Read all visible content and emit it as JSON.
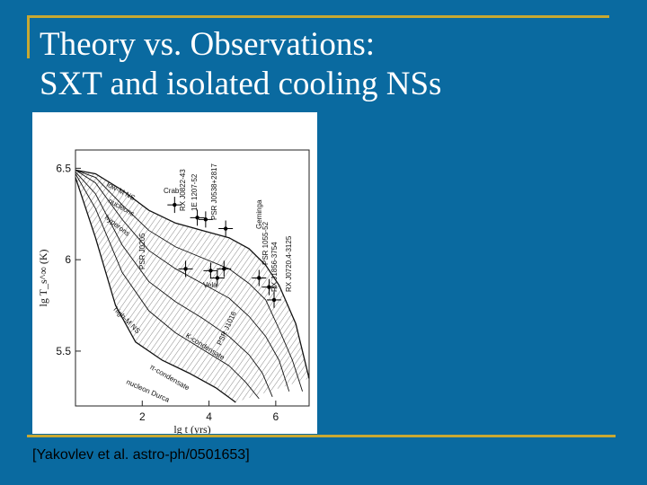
{
  "slide": {
    "title_line1": "Theory vs. Observations:",
    "title_line2": "SXT and isolated cooling NSs",
    "citation": "[Yakovlev et al. astro-ph/0501653]",
    "colors": {
      "background": "#0a6aa0",
      "frame": "#c8a832",
      "title": "#ffffff"
    }
  },
  "chart_data": {
    "type": "line",
    "xlabel": "lg t   (yrs)",
    "ylabel": "lg T_s^∞  (K)",
    "xlim": [
      0,
      7
    ],
    "ylim": [
      5.2,
      6.6
    ],
    "x_ticks": [
      "2",
      "4",
      "6"
    ],
    "y_ticks": [
      "6.5",
      "6",
      "5.5"
    ],
    "curve_labels": [
      "low-M NS",
      "nucleons",
      "hyperons",
      "high-M NS",
      "K-condensate",
      "π-condensate",
      "nucleon Durca"
    ],
    "source_labels": [
      "Crab",
      "RX J0822-43",
      "1E 1207-52",
      "PSR J0538+2817",
      "Vela",
      "PSR J0205",
      "PSR 1055-52",
      "Geminga",
      "RX J1856-3754",
      "RX J0720.4-3125",
      "PSR J1016"
    ],
    "series": [
      {
        "x": [
          0,
          0.6,
          1.4,
          2.2,
          3.0,
          3.8,
          4.6,
          5.2,
          5.7,
          6.1,
          6.6,
          7.0
        ],
        "y": [
          6.49,
          6.47,
          6.38,
          6.27,
          6.2,
          6.16,
          6.12,
          6.06,
          5.97,
          5.86,
          5.65,
          5.35
        ]
      },
      {
        "x": [
          0,
          0.6,
          1.4,
          2.2,
          3.0,
          3.8,
          4.6,
          5.2,
          5.7,
          6.1,
          6.5,
          6.8
        ],
        "y": [
          6.49,
          6.45,
          6.3,
          6.16,
          6.07,
          6.01,
          5.95,
          5.87,
          5.78,
          5.62,
          5.45,
          5.28
        ]
      },
      {
        "x": [
          0,
          0.6,
          1.4,
          2.2,
          3.0,
          3.8,
          4.6,
          5.2,
          5.7,
          6.1,
          6.4
        ],
        "y": [
          6.49,
          6.42,
          6.22,
          6.05,
          5.95,
          5.87,
          5.79,
          5.69,
          5.58,
          5.45,
          5.28
        ]
      },
      {
        "x": [
          0,
          0.6,
          1.4,
          2.2,
          3.0,
          3.8,
          4.6,
          5.2,
          5.6,
          5.9
        ],
        "y": [
          6.48,
          6.36,
          6.08,
          5.88,
          5.77,
          5.68,
          5.58,
          5.48,
          5.38,
          5.25
        ]
      },
      {
        "x": [
          0,
          0.6,
          1.4,
          2.2,
          3.0,
          3.8,
          4.6,
          5.1,
          5.5
        ],
        "y": [
          6.47,
          6.28,
          5.93,
          5.72,
          5.6,
          5.51,
          5.42,
          5.33,
          5.24
        ]
      },
      {
        "x": [
          0,
          0.6,
          1.2,
          1.8,
          2.6,
          3.4,
          4.2,
          4.8
        ],
        "y": [
          6.45,
          6.12,
          5.75,
          5.55,
          5.45,
          5.38,
          5.3,
          5.22
        ]
      }
    ],
    "observations": [
      {
        "x": 2.97,
        "y": 6.3
      },
      {
        "x": 3.65,
        "y": 6.23
      },
      {
        "x": 3.9,
        "y": 6.22
      },
      {
        "x": 4.5,
        "y": 6.17
      },
      {
        "x": 4.25,
        "y": 5.9
      },
      {
        "x": 4.05,
        "y": 5.94
      },
      {
        "x": 4.45,
        "y": 5.95
      },
      {
        "x": 5.5,
        "y": 5.9
      },
      {
        "x": 5.8,
        "y": 5.85
      },
      {
        "x": 5.95,
        "y": 5.78
      },
      {
        "x": 3.3,
        "y": 5.95
      }
    ]
  }
}
